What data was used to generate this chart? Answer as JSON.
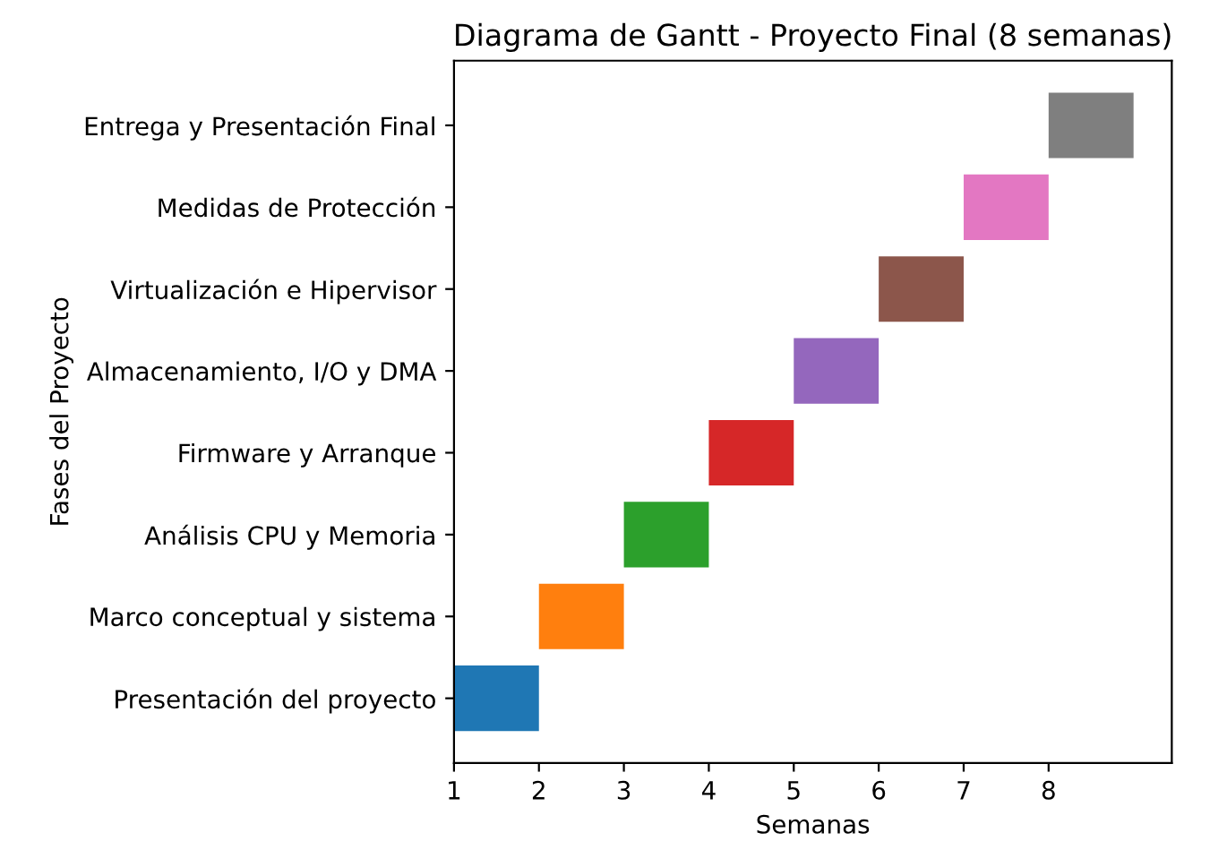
{
  "chart_data": {
    "type": "bar",
    "orientation": "horizontal",
    "title": "Diagrama de Gantt - Proyecto Final (8 semanas)",
    "xlabel": "Semanas",
    "ylabel": "Fases del Proyecto",
    "categories": [
      "Entrega y Presentación Final",
      "Medidas de Protección",
      "Virtualización e Hipervisor",
      "Almacenamiento, I/O y DMA",
      "Firmware y Arranque",
      "Análisis CPU y Memoria",
      "Marco conceptual y sistema",
      "Presentación del proyecto"
    ],
    "base": [
      8,
      7,
      6,
      5,
      4,
      3,
      2,
      1
    ],
    "values": [
      1,
      1,
      1,
      1,
      1,
      1,
      1,
      1
    ],
    "colors": [
      "#7f7f7f",
      "#e377c2",
      "#8c564b",
      "#9467bd",
      "#d62728",
      "#2ca02c",
      "#ff7f0e",
      "#1f77b4"
    ],
    "xlim": [
      1,
      9.45
    ],
    "xticks": [
      1,
      2,
      3,
      4,
      5,
      6,
      7,
      8
    ],
    "grid": false
  }
}
